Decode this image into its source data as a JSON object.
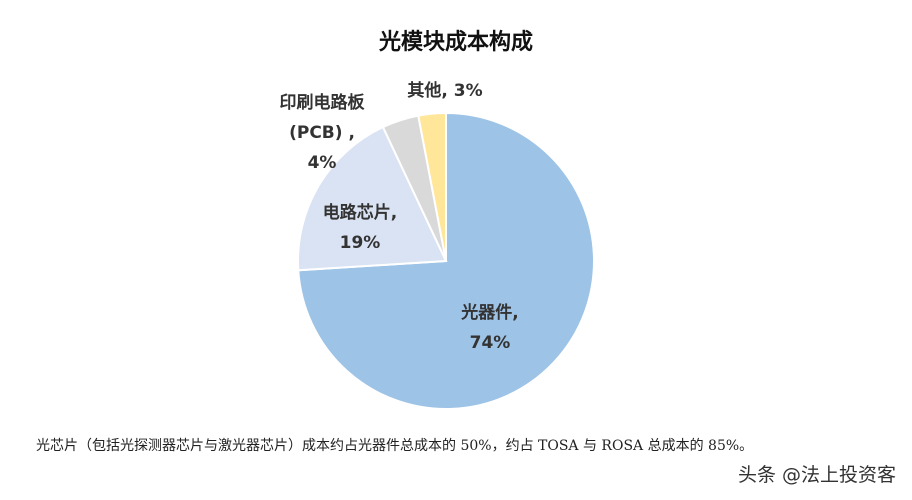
{
  "chart_data": {
    "type": "pie",
    "title": "光模块成本构成",
    "categories": [
      "光器件,",
      "电路芯片,",
      "印刷电路板 (PCB) ,",
      "其他,"
    ],
    "values": [
      74,
      19,
      4,
      3
    ],
    "value_labels": [
      "74%",
      "19%",
      "4%",
      "3%"
    ],
    "colors": [
      "#9dc3e6",
      "#dae3f3",
      "#d9d9d9",
      "#ffe699"
    ]
  },
  "caption": "光芯片（包括光探测器芯片与激光器芯片）成本约占光器件总成本的 50%，约占 TOSA 与 ROSA 总成本的 85%。",
  "watermark": "头条 @法上投资客"
}
